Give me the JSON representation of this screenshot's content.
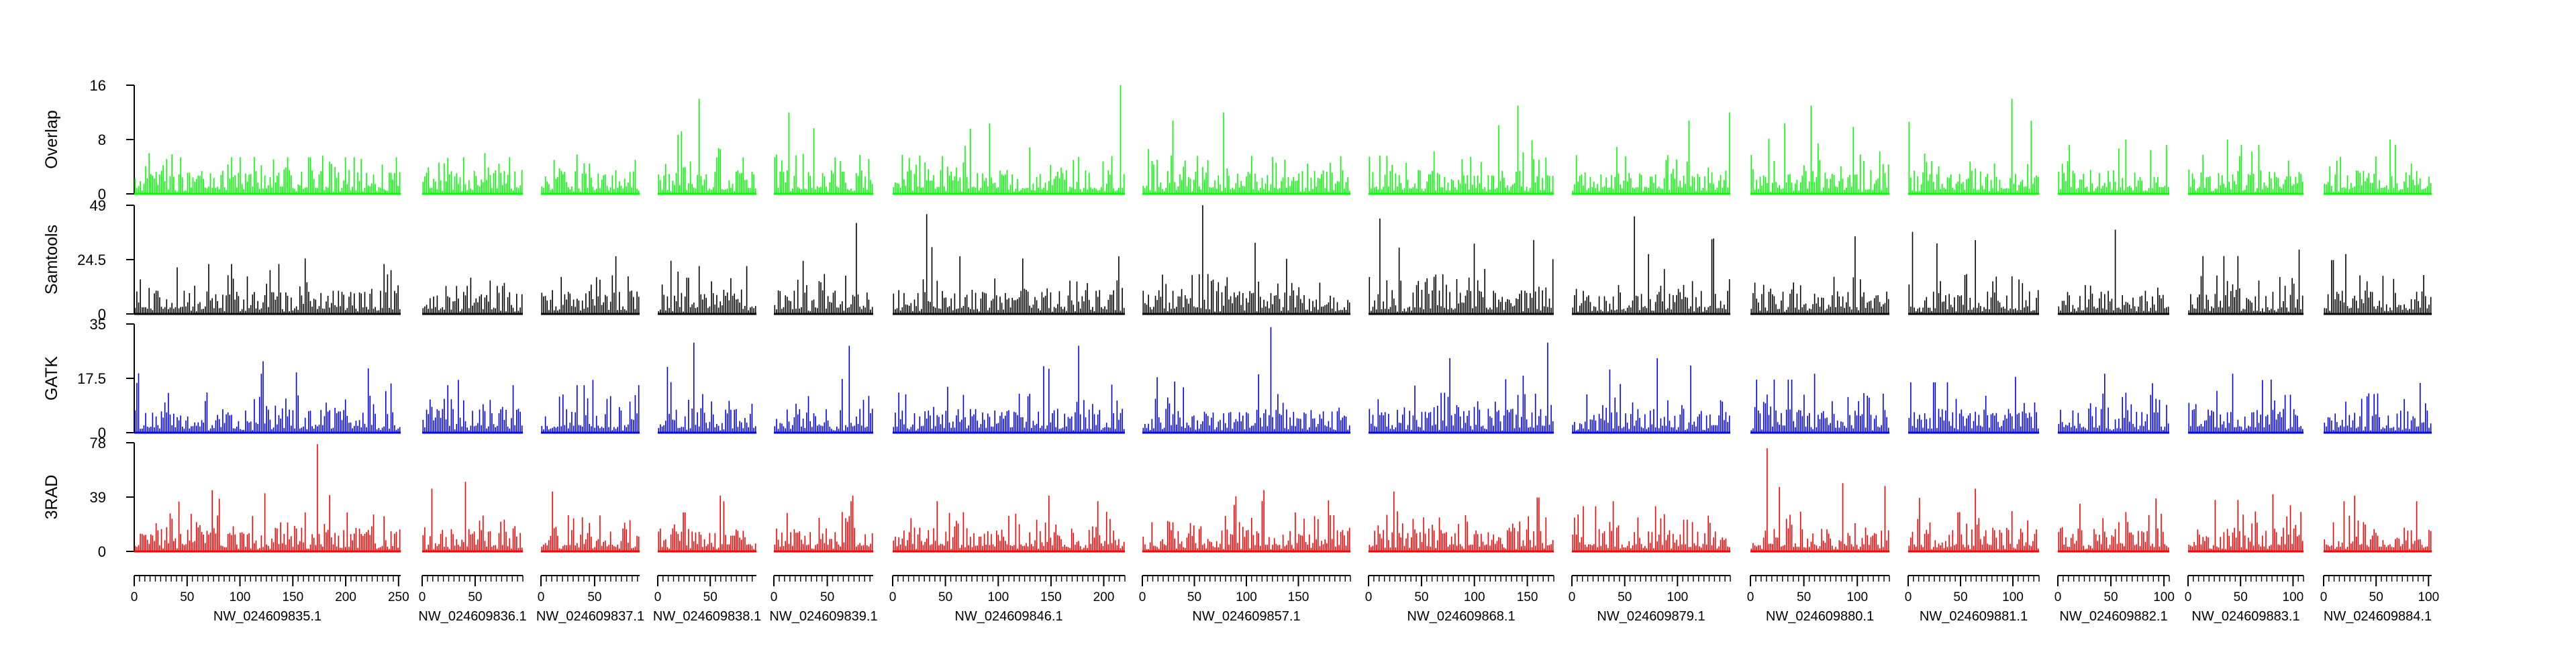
{
  "chart_data": {
    "type": "bar",
    "colors": {
      "Overlap": "#00ff00",
      "Samtools": "#000000",
      "GATK": "#0000ff",
      "3RAD": "#ff0000"
    },
    "series": [
      {
        "name": "Overlap",
        "ylim": [
          0,
          16
        ],
        "ticks": [
          "0",
          "8",
          "16"
        ],
        "scale_max": 16,
        "peaks": [
          6,
          6,
          5,
          14,
          12,
          16,
          12,
          13,
          12,
          13,
          14,
          8,
          8,
          8,
          8,
          14
        ]
      },
      {
        "name": "Samtools",
        "ylim": [
          0,
          49
        ],
        "ticks": [
          "0",
          "24.5",
          "49"
        ],
        "scale_max": 49,
        "peaks": [
          25,
          14,
          26,
          24,
          41,
          45,
          49,
          43,
          44,
          35,
          37,
          38,
          29,
          27,
          26,
          37
        ]
      },
      {
        "name": "GATK",
        "ylim": [
          0,
          35
        ],
        "ticks": [
          "0",
          "17.5",
          "35"
        ],
        "scale_max": 35,
        "peaks": [
          23,
          17,
          17,
          29,
          28,
          28,
          34,
          29,
          24,
          19,
          18,
          19,
          19,
          16,
          23,
          35
        ]
      },
      {
        "name": "3RAD",
        "ylim": [
          0,
          78
        ],
        "ticks": [
          "0",
          "39",
          "78"
        ],
        "scale_max": 78,
        "peaks": [
          77,
          50,
          43,
          40,
          40,
          40,
          44,
          43,
          36,
          74,
          45,
          38,
          41,
          40,
          40,
          40
        ]
      }
    ],
    "contigs": [
      {
        "name": "NW_024609835.1",
        "length": 252,
        "x_ticks": [
          "0",
          "50",
          "100",
          "150",
          "200",
          "250"
        ]
      },
      {
        "name": "NW_024609836.1",
        "length": 95,
        "x_ticks": [
          "0",
          "50"
        ]
      },
      {
        "name": "NW_024609837.1",
        "length": 92,
        "x_ticks": [
          "0",
          "50"
        ]
      },
      {
        "name": "NW_024609838.1",
        "length": 94,
        "x_ticks": [
          "0",
          "50"
        ]
      },
      {
        "name": "NW_024609839.1",
        "length": 93,
        "x_ticks": [
          "0",
          "50"
        ]
      },
      {
        "name": "NW_024609846.1",
        "length": 220,
        "x_ticks": [
          "0",
          "50",
          "100",
          "150",
          "200"
        ]
      },
      {
        "name": "NW_024609857.1",
        "length": 200,
        "x_ticks": [
          "0",
          "50",
          "100",
          "150"
        ]
      },
      {
        "name": "NW_024609868.1",
        "length": 175,
        "x_ticks": [
          "0",
          "50",
          "100",
          "150"
        ]
      },
      {
        "name": "NW_024609879.1",
        "length": 150,
        "x_ticks": [
          "0",
          "50",
          "100"
        ]
      },
      {
        "name": "NW_024609880.1",
        "length": 130,
        "x_ticks": [
          "0",
          "50",
          "100"
        ]
      },
      {
        "name": "NW_024609881.1",
        "length": 125,
        "x_ticks": [
          "0",
          "50",
          "100"
        ]
      },
      {
        "name": "NW_024609882.1",
        "length": 105,
        "x_ticks": [
          "0",
          "50",
          "100"
        ]
      },
      {
        "name": "NW_024609883.1",
        "length": 110,
        "x_ticks": [
          "0",
          "50",
          "100"
        ]
      },
      {
        "name": "NW_024609884.1",
        "length": 103,
        "x_ticks": [
          "0",
          "50",
          "100"
        ]
      }
    ]
  }
}
